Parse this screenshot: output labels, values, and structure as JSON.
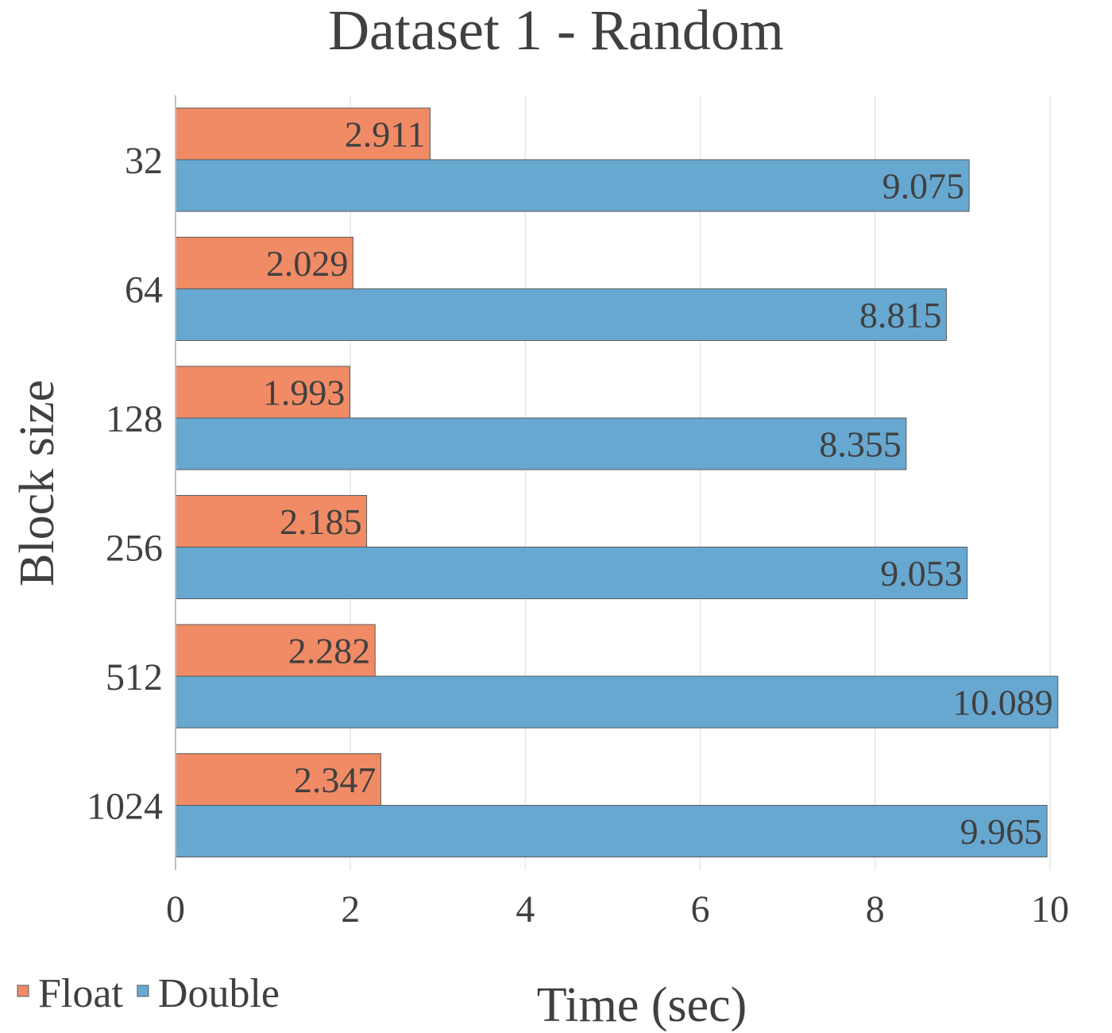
{
  "chart_data": {
    "type": "bar",
    "orientation": "horizontal",
    "title": "Dataset 1 - Random",
    "xlabel": "Time (sec)",
    "ylabel": "Block size",
    "categories": [
      "32",
      "64",
      "128",
      "256",
      "512",
      "1024"
    ],
    "series": [
      {
        "name": "Float",
        "color": "#f08b65",
        "values": [
          2.911,
          2.029,
          1.993,
          2.185,
          2.282,
          2.347
        ]
      },
      {
        "name": "Double",
        "color": "#67a8d1",
        "values": [
          9.075,
          8.815,
          8.355,
          9.053,
          10.089,
          9.965
        ]
      }
    ],
    "data_labels": [
      [
        "2.911",
        "2.029",
        "1.993",
        "2.185",
        "2.282",
        "2.347"
      ],
      [
        "9.075",
        "8.815",
        "8.355",
        "9.053",
        "10.089",
        "9.965"
      ]
    ],
    "xlim": [
      0,
      10
    ],
    "xticks": [
      "0",
      "2",
      "4",
      "6",
      "8",
      "10"
    ],
    "grid": true,
    "legend_position": "bottom-left"
  }
}
